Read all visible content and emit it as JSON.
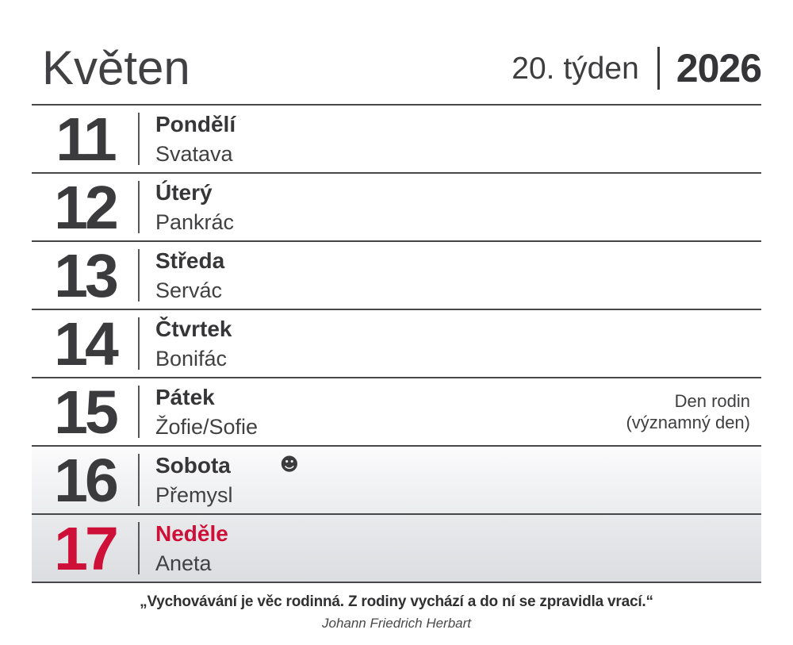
{
  "header": {
    "month": "Květen",
    "week": "20. týden",
    "year": "2026"
  },
  "days": [
    {
      "number": "11",
      "day_name": "Pondělí",
      "name_day": "Svatava"
    },
    {
      "number": "12",
      "day_name": "Úterý",
      "name_day": "Pankrác"
    },
    {
      "number": "13",
      "day_name": "Středa",
      "name_day": "Servác"
    },
    {
      "number": "14",
      "day_name": "Čtvrtek",
      "name_day": "Bonifác"
    },
    {
      "number": "15",
      "day_name": "Pátek",
      "name_day": "Žofie/Sofie",
      "note_line1": "Den rodin",
      "note_line2": "(významný den)"
    },
    {
      "number": "16",
      "day_name": "Sobota",
      "name_day": "Přemysl",
      "emoji": "☻"
    },
    {
      "number": "17",
      "day_name": "Neděle",
      "name_day": "Aneta"
    }
  ],
  "footer": {
    "quote": "„Vychovávání je věc rodinná. Z rodiny vychází a do ní se zpravidla vrací.“",
    "author": "Johann Friedrich Herbart"
  },
  "colors": {
    "accent_red": "#ce0f38",
    "text_dark": "#3b3b3d",
    "line": "#47474a"
  }
}
